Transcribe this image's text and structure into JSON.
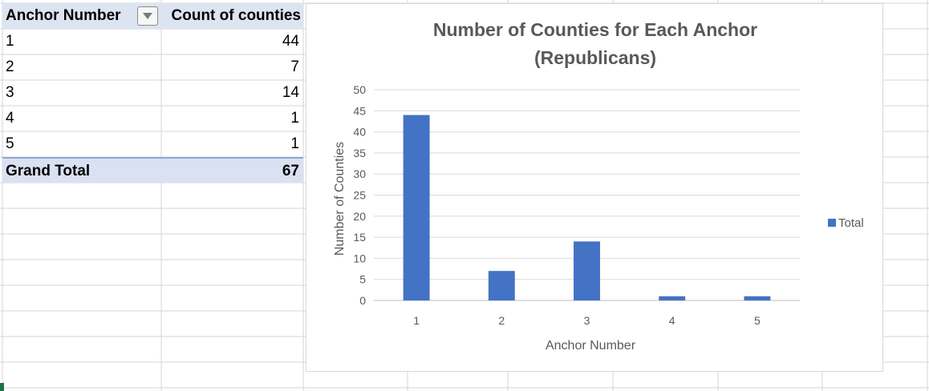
{
  "pivot": {
    "header": {
      "col1": "Anchor Number",
      "col2": "Count of counties"
    },
    "rows": [
      {
        "label": "1",
        "count": "44"
      },
      {
        "label": "2",
        "count": "7"
      },
      {
        "label": "3",
        "count": "14"
      },
      {
        "label": "4",
        "count": "1"
      },
      {
        "label": "5",
        "count": "1"
      }
    ],
    "total": {
      "label": "Grand Total",
      "count": "67"
    }
  },
  "chart_data": {
    "type": "bar",
    "title": "Number of Counties for Each Anchor (Republicans)",
    "title_lines": [
      "Number of Counties for Each Anchor",
      "(Republicans)"
    ],
    "categories": [
      "1",
      "2",
      "3",
      "4",
      "5"
    ],
    "series": [
      {
        "name": "Total",
        "values": [
          44,
          7,
          14,
          1,
          1
        ]
      }
    ],
    "xlabel": "Anchor Number",
    "ylabel": "Number of Counties",
    "ylim": [
      0,
      50
    ],
    "yticks": [
      0,
      5,
      10,
      15,
      20,
      25,
      30,
      35,
      40,
      45,
      50
    ],
    "grid": true,
    "legend_position": "right",
    "colors": {
      "bar": "#4472c4",
      "gridline": "#d9d9d9",
      "text": "#595959"
    }
  }
}
